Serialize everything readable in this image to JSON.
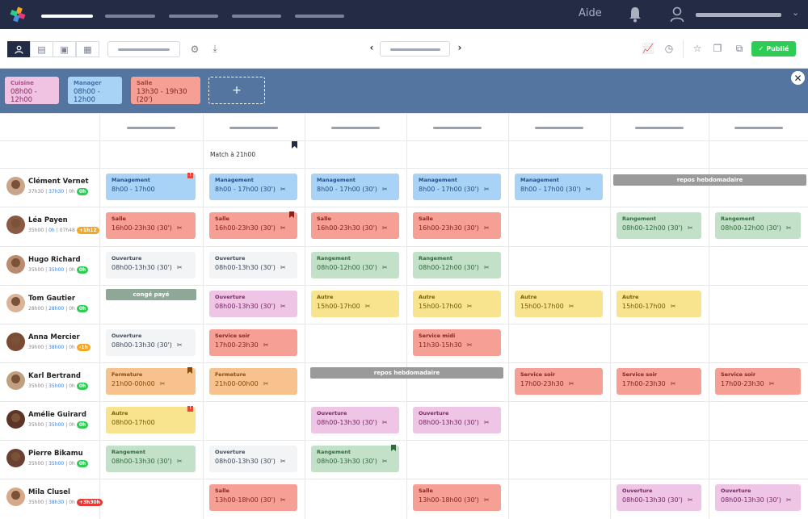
{
  "nav": {
    "help_label": "Aide"
  },
  "toolbar": {
    "publish_label": "Publié"
  },
  "templates": [
    {
      "name": "Cuisine",
      "time": "08h00 - 12h00",
      "color": "#f0c3e2",
      "text": "#8a2a6a"
    },
    {
      "name": "Manager",
      "time": "08h00 - 12h00",
      "color": "#a9d2f7",
      "text": "#1f4f86"
    },
    {
      "name": "Salle",
      "time": "13h30 - 19h30 (20')",
      "color": "#f59f95",
      "text": "#8a2218"
    }
  ],
  "add_template_label": "+",
  "close_label": "✕",
  "event": {
    "label": "Match à 21h00"
  },
  "labels": {
    "repos": "repos hebdomadaire",
    "conge": "congé payé"
  },
  "employees": [
    {
      "name": "Clément Vernet",
      "planned": "37h30",
      "contract": "37h30",
      "extra": "0h",
      "badge": "0h",
      "badge_color": "#2ecc54"
    },
    {
      "name": "Léa Payen",
      "planned": "35h00",
      "contract": "0h",
      "extra": "07h48",
      "badge": "+1h12",
      "badge_color": "#f5a623"
    },
    {
      "name": "Hugo Richard",
      "planned": "35h00",
      "contract": "35h00",
      "extra": "0h",
      "badge": "0h",
      "badge_color": "#2ecc54"
    },
    {
      "name": "Tom Gautier",
      "planned": "28h00",
      "contract": "28h00",
      "extra": "0h",
      "badge": "0h",
      "badge_color": "#2ecc54"
    },
    {
      "name": "Anna Mercier",
      "planned": "39h00",
      "contract": "38h00",
      "extra": "0h",
      "badge": "-1h",
      "badge_color": "#f5a623"
    },
    {
      "name": "Karl Bertrand",
      "planned": "35h00",
      "contract": "35h00",
      "extra": "0h",
      "badge": "0h",
      "badge_color": "#2ecc54"
    },
    {
      "name": "Amélie Guirard",
      "planned": "35h00",
      "contract": "35h00",
      "extra": "0h",
      "badge": "0h",
      "badge_color": "#2ecc54"
    },
    {
      "name": "Pierre Bikamu",
      "planned": "35h00",
      "contract": "35h00",
      "extra": "0h",
      "badge": "0h",
      "badge_color": "#2ecc54"
    },
    {
      "name": "Mila  Clusel",
      "planned": "35h00",
      "contract": "38h30",
      "extra": "0h",
      "badge": "+3h30h",
      "badge_color": "#e53935"
    }
  ],
  "shift_types": {
    "management": {
      "label": "Management",
      "bg": "#a9d2f7",
      "fg": "#1f4f86"
    },
    "salle": {
      "label": "Salle",
      "bg": "#f59f95",
      "fg": "#8a2218"
    },
    "rangement": {
      "label": "Rangement",
      "bg": "#c3e0c8",
      "fg": "#2f6b3a"
    },
    "ouverture_w": {
      "label": "Ouverture",
      "bg": "#f3f4f6",
      "fg": "#3d4a5c"
    },
    "ouverture_p": {
      "label": "Ouverture",
      "bg": "#efc5e5",
      "fg": "#7a2465"
    },
    "autre": {
      "label": "Autre",
      "bg": "#f8e48e",
      "fg": "#7a5a00"
    },
    "service_soir": {
      "label": "Service soir",
      "bg": "#f59f95",
      "fg": "#8a2218"
    },
    "service_midi": {
      "label": "Service midi",
      "bg": "#f59f95",
      "fg": "#8a2218"
    },
    "fermeture": {
      "label": "Fermeture",
      "bg": "#f7c28e",
      "fg": "#8a4a0a"
    }
  },
  "shifts": [
    {
      "row": 0,
      "col": 0,
      "type": "management",
      "time": "8h00 - 17h00",
      "mark": "warn"
    },
    {
      "row": 0,
      "col": 1,
      "type": "management",
      "time": "8h00 - 17h00 (30')",
      "icon": "✂"
    },
    {
      "row": 0,
      "col": 2,
      "type": "management",
      "time": "8h00 - 17h00 (30')",
      "icon": "✂"
    },
    {
      "row": 0,
      "col": 3,
      "type": "management",
      "time": "8h00 - 17h00 (30')",
      "icon": "✂"
    },
    {
      "row": 0,
      "col": 4,
      "type": "management",
      "time": "8h00 - 17h00 (30')",
      "icon": "✂"
    },
    {
      "row": 1,
      "col": 0,
      "type": "salle",
      "time": "16h00-23h30 (30')",
      "icon": "✂"
    },
    {
      "row": 1,
      "col": 1,
      "type": "salle",
      "time": "16h00-23h30 (30')",
      "icon": "✂",
      "mark": "flag"
    },
    {
      "row": 1,
      "col": 2,
      "type": "salle",
      "time": "16h00-23h30 (30')",
      "icon": "✂"
    },
    {
      "row": 1,
      "col": 3,
      "type": "salle",
      "time": "16h00-23h30 (30')",
      "icon": "✂"
    },
    {
      "row": 1,
      "col": 5,
      "type": "rangement",
      "time": "08h00-12h00 (30')",
      "icon": "✂"
    },
    {
      "row": 1,
      "col": 6,
      "type": "rangement",
      "time": "08h00-12h00 (30')",
      "icon": "✂"
    },
    {
      "row": 2,
      "col": 0,
      "type": "ouverture_w",
      "time": "08h00-13h30 (30')",
      "icon": "✂"
    },
    {
      "row": 2,
      "col": 1,
      "type": "ouverture_w",
      "time": "08h00-13h30 (30')",
      "icon": "✂"
    },
    {
      "row": 2,
      "col": 2,
      "type": "rangement",
      "time": "08h00-12h00 (30')",
      "icon": "✂"
    },
    {
      "row": 2,
      "col": 3,
      "type": "rangement",
      "time": "08h00-12h00 (30')",
      "icon": "✂"
    },
    {
      "row": 3,
      "col": 1,
      "type": "ouverture_p",
      "time": "08h00-13h30 (30')",
      "icon": "✂"
    },
    {
      "row": 3,
      "col": 2,
      "type": "autre",
      "time": "15h00-17h00",
      "icon": "✂"
    },
    {
      "row": 3,
      "col": 3,
      "type": "autre",
      "time": "15h00-17h00",
      "icon": "✂"
    },
    {
      "row": 3,
      "col": 4,
      "type": "autre",
      "time": "15h00-17h00",
      "icon": "✂"
    },
    {
      "row": 3,
      "col": 5,
      "type": "autre",
      "time": "15h00-17h00",
      "icon": "✂"
    },
    {
      "row": 4,
      "col": 0,
      "type": "ouverture_w",
      "time": "08h00-13h30 (30')",
      "icon": "✂"
    },
    {
      "row": 4,
      "col": 1,
      "type": "service_soir",
      "time": "17h00-23h30",
      "icon": "✂"
    },
    {
      "row": 4,
      "col": 3,
      "type": "service_midi",
      "time": "11h30-15h30",
      "icon": "✂"
    },
    {
      "row": 5,
      "col": 0,
      "type": "fermeture",
      "time": "21h00-00h00",
      "icon": "✂",
      "mark": "flag"
    },
    {
      "row": 5,
      "col": 1,
      "type": "fermeture",
      "time": "21h00-00h00",
      "icon": "✂"
    },
    {
      "row": 5,
      "col": 4,
      "type": "service_soir",
      "time": "17h00-23h30",
      "icon": "✂"
    },
    {
      "row": 5,
      "col": 5,
      "type": "service_soir",
      "time": "17h00-23h30",
      "icon": "✂"
    },
    {
      "row": 5,
      "col": 6,
      "type": "service_soir",
      "time": "17h00-23h30",
      "icon": "✂"
    },
    {
      "row": 6,
      "col": 0,
      "type": "autre",
      "time": "08h00-17h00",
      "mark": "warn"
    },
    {
      "row": 6,
      "col": 2,
      "type": "ouverture_p",
      "time": "08h00-13h30 (30')",
      "icon": "✂"
    },
    {
      "row": 6,
      "col": 3,
      "type": "ouverture_p",
      "time": "08h00-13h30 (30')",
      "icon": "✂"
    },
    {
      "row": 7,
      "col": 0,
      "type": "rangement",
      "time": "08h00-13h30 (30')",
      "icon": "✂"
    },
    {
      "row": 7,
      "col": 1,
      "type": "ouverture_w",
      "time": "08h00-13h30 (30')",
      "icon": "✂"
    },
    {
      "row": 7,
      "col": 2,
      "type": "rangement",
      "time": "08h00-13h30 (30')",
      "icon": "✂",
      "mark": "flag"
    },
    {
      "row": 8,
      "col": 1,
      "type": "salle",
      "time": "13h00-18h00 (30')",
      "icon": "✂"
    },
    {
      "row": 8,
      "col": 3,
      "type": "salle",
      "time": "13h00-18h00 (30')",
      "icon": "✂"
    },
    {
      "row": 8,
      "col": 5,
      "type": "ouverture_p",
      "time": "08h00-13h30 (30')",
      "icon": "✂"
    },
    {
      "row": 8,
      "col": 6,
      "type": "ouverture_p",
      "time": "08h00-13h30 (30')",
      "icon": "✂"
    }
  ]
}
